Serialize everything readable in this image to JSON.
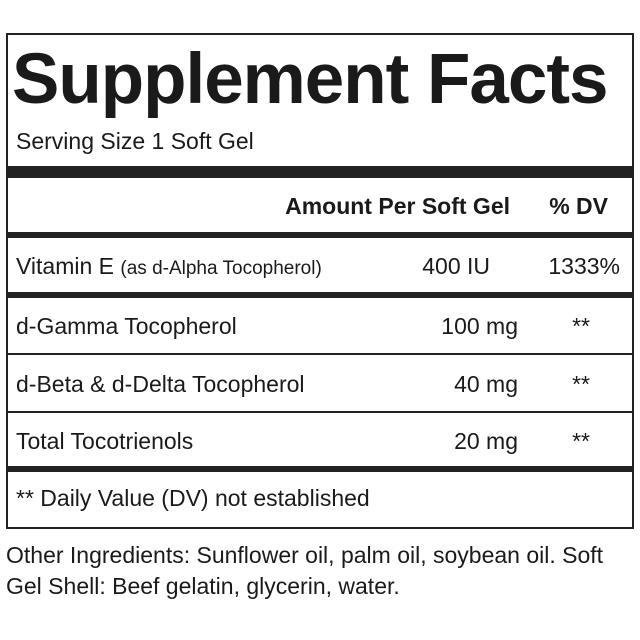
{
  "title": "Supplement Facts",
  "serving_size": "Serving Size 1 Soft Gel",
  "header": {
    "amount": "Amount Per Soft Gel",
    "dv": "% DV"
  },
  "rows": [
    {
      "name": "Vitamin E",
      "note": "(as d-Alpha Tocopherol)",
      "amount": "400 IU",
      "dv": "1333%"
    },
    {
      "name": "d-Gamma Tocopherol",
      "note": "",
      "amount": "100 mg",
      "dv": "**"
    },
    {
      "name": "d-Beta & d-Delta Tocopherol",
      "note": "",
      "amount": "40 mg",
      "dv": "**"
    },
    {
      "name": "Total Tocotrienols",
      "note": "",
      "amount": "20 mg",
      "dv": "**"
    }
  ],
  "footnote": "** Daily Value (DV) not established",
  "other_ingredients": "Other Ingredients: Sunflower oil, palm oil, soybean oil. Soft Gel Shell: Beef gelatin, glycerin, water."
}
